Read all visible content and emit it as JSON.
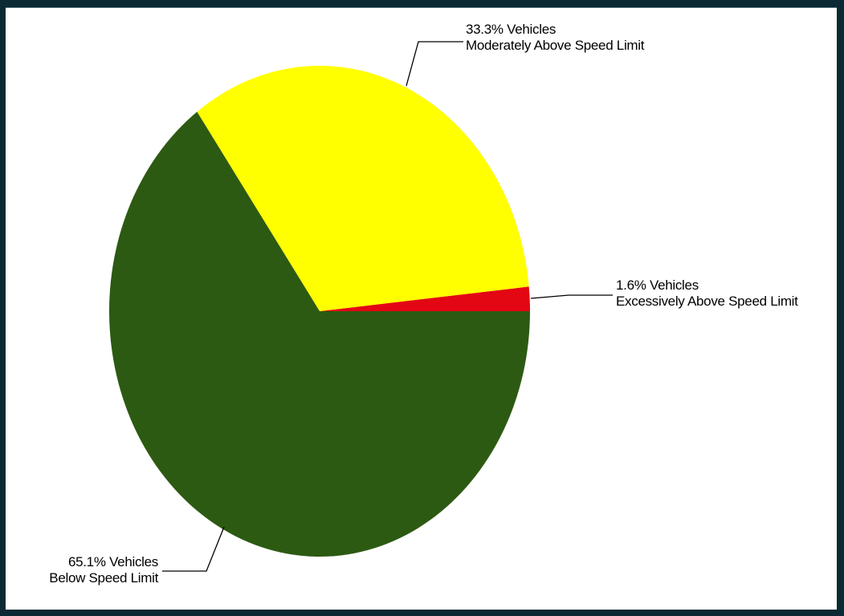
{
  "chart_data": {
    "type": "pie",
    "slices": [
      {
        "value": 1.6,
        "label": "1.6%  Vehicles",
        "sublabel": "Excessively Above Speed Limit",
        "color": "#e30613"
      },
      {
        "value": 33.3,
        "label": "33.3%  Vehicles",
        "sublabel": "Moderately Above Speed Limit",
        "color": "#ffff00"
      },
      {
        "value": 65.1,
        "label": "65.1%  Vehicles",
        "sublabel": "Below Speed Limit",
        "color": "#2d5a12"
      }
    ]
  },
  "colors": {
    "frame_background": "#0c2a34",
    "panel_background": "#ffffff",
    "leader_line": "#000000"
  }
}
